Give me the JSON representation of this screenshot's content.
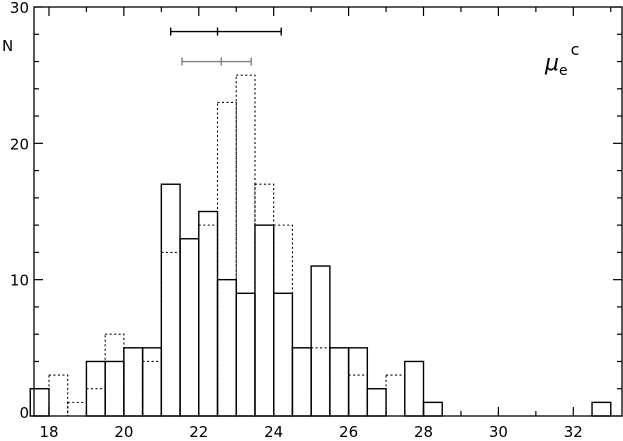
{
  "chart_data": {
    "type": "bar",
    "title": "",
    "xlabel": "",
    "ylabel": "N",
    "annotation": {
      "symbol": "μ",
      "subscript": "e",
      "superscript": "c"
    },
    "xlim": [
      17.6,
      33.3
    ],
    "ylim": [
      0,
      30
    ],
    "x_ticks": [
      18,
      20,
      22,
      24,
      26,
      28,
      30,
      32
    ],
    "y_ticks": [
      0,
      10,
      20,
      30
    ],
    "grid": false,
    "bin_width": 0.5,
    "series": [
      {
        "style": "solid",
        "color": "#000000",
        "bins": [
          {
            "x0": 17.5,
            "value": 2
          },
          {
            "x0": 18.0,
            "value": 0
          },
          {
            "x0": 18.5,
            "value": 0
          },
          {
            "x0": 19.0,
            "value": 4
          },
          {
            "x0": 19.5,
            "value": 4
          },
          {
            "x0": 20.0,
            "value": 5
          },
          {
            "x0": 20.5,
            "value": 5
          },
          {
            "x0": 21.0,
            "value": 17
          },
          {
            "x0": 21.5,
            "value": 13
          },
          {
            "x0": 22.0,
            "value": 15
          },
          {
            "x0": 22.5,
            "value": 10
          },
          {
            "x0": 23.0,
            "value": 9
          },
          {
            "x0": 23.5,
            "value": 14
          },
          {
            "x0": 24.0,
            "value": 9
          },
          {
            "x0": 24.5,
            "value": 5
          },
          {
            "x0": 25.0,
            "value": 11
          },
          {
            "x0": 25.5,
            "value": 5
          },
          {
            "x0": 26.0,
            "value": 5
          },
          {
            "x0": 26.5,
            "value": 2
          },
          {
            "x0": 27.0,
            "value": 0
          },
          {
            "x0": 27.5,
            "value": 4
          },
          {
            "x0": 28.0,
            "value": 1
          },
          {
            "x0": 32.5,
            "value": 1
          }
        ]
      },
      {
        "style": "dotted",
        "color": "#000000",
        "bins": [
          {
            "x0": 17.5,
            "value": 0
          },
          {
            "x0": 18.0,
            "value": 3
          },
          {
            "x0": 18.5,
            "value": 1
          },
          {
            "x0": 19.0,
            "value": 2
          },
          {
            "x0": 19.5,
            "value": 6
          },
          {
            "x0": 20.0,
            "value": 5
          },
          {
            "x0": 20.5,
            "value": 4
          },
          {
            "x0": 21.0,
            "value": 12
          },
          {
            "x0": 21.5,
            "value": 13
          },
          {
            "x0": 22.0,
            "value": 14
          },
          {
            "x0": 22.5,
            "value": 23
          },
          {
            "x0": 23.0,
            "value": 25
          },
          {
            "x0": 23.5,
            "value": 17
          },
          {
            "x0": 24.0,
            "value": 14
          },
          {
            "x0": 24.5,
            "value": 5
          },
          {
            "x0": 25.0,
            "value": 5
          },
          {
            "x0": 25.5,
            "value": 5
          },
          {
            "x0": 26.0,
            "value": 3
          },
          {
            "x0": 26.5,
            "value": 2
          },
          {
            "x0": 27.0,
            "value": 3
          },
          {
            "x0": 27.5,
            "value": 0
          },
          {
            "x0": 28.0,
            "value": 0
          },
          {
            "x0": 32.5,
            "value": 0
          }
        ]
      }
    ],
    "range_markers": [
      {
        "color": "#000000",
        "y": 28.2,
        "low": 21.25,
        "mid": 22.5,
        "high": 24.2
      },
      {
        "color": "#808080",
        "y": 26.0,
        "low": 21.55,
        "mid": 22.6,
        "high": 23.4
      }
    ]
  }
}
